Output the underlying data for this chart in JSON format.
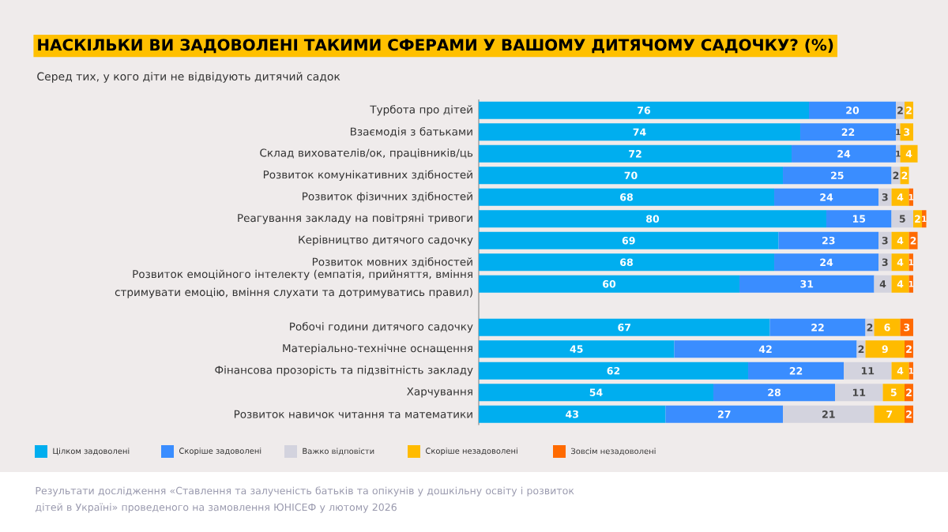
{
  "chart_data": {
    "type": "bar",
    "orientation": "horizontal",
    "stacked": true,
    "title": "НАСКІЛЬКИ ВИ ЗАДОВОЛЕНІ ТАКИМИ СФЕРАМИ У ВАШОМУ ДИТЯЧОМУ САДОЧКУ? (%)",
    "subtitle": "Серед тих, у кого діти не відвідують дитячий садок",
    "categories": [
      "Турбота про дітей",
      "Взаємодія з батьками",
      "Склад вихователів/ок, працівників/ць",
      "Розвиток комунікативних здібностей",
      "Розвиток фізичних здібностей",
      "Реагування закладу на повітряні тривоги",
      "Керівництво дитячого садочку",
      "Розвиток мовних здібностей",
      "Розвиток емоційного інтелекту (емпатія, прийняття, вміння стримувати емоцію, вміння слухати та дотримуватись правил)",
      "Робочі години дитячого садочку",
      "Матеріально-технічне оснащення",
      "Фінансова прозорість та підзвітність закладу",
      "Харчування",
      "Розвиток навичок читання та математики"
    ],
    "series": [
      {
        "name": "Цілком задоволені",
        "color": "#00aeef",
        "values": [
          76,
          74,
          72,
          70,
          68,
          80,
          69,
          68,
          60,
          67,
          45,
          62,
          54,
          43
        ]
      },
      {
        "name": "Скоріше задоволені",
        "color": "#3a8dff",
        "values": [
          20,
          22,
          24,
          25,
          24,
          15,
          23,
          24,
          31,
          22,
          42,
          22,
          28,
          27
        ]
      },
      {
        "name": "Важко відповісти",
        "color": "#d3d3de",
        "values": [
          2,
          1,
          1,
          2,
          3,
          5,
          3,
          3,
          4,
          2,
          2,
          11,
          11,
          21
        ]
      },
      {
        "name": "Скоріше незадоволені",
        "color": "#ffbb00",
        "values": [
          2,
          3,
          4,
          2,
          4,
          2,
          4,
          4,
          4,
          6,
          9,
          4,
          5,
          7
        ]
      },
      {
        "name": "Зовсім незадоволені",
        "color": "#ff6a00",
        "values": [
          0,
          0,
          0,
          0,
          1,
          1,
          2,
          1,
          1,
          3,
          2,
          1,
          2,
          2
        ],
        "value_labels": [
          null,
          null,
          null,
          null,
          "1",
          "1",
          "2",
          "1",
          "1",
          "3",
          "2",
          "1",
          "2",
          "2"
        ]
      }
    ],
    "data_labels": true,
    "legend": "bottom",
    "annotations": [
      "Результати дослідження «Ставлення та залученість батьків та опікунів у дошкільну освіту і розвиток дітей в Україні» проведеного на замовлення ЮНІСЕФ у лютому 2026"
    ]
  }
}
